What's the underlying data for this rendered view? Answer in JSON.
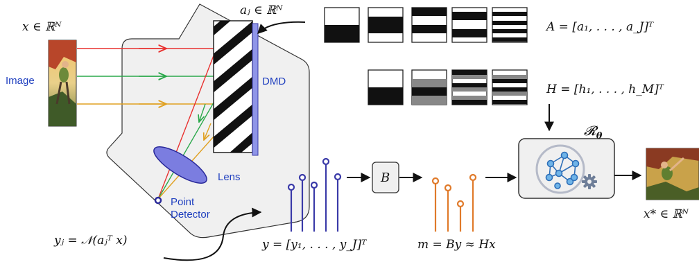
{
  "labels": {
    "image": "Image",
    "dmd": "DMD",
    "lens": "Lens",
    "point": "Point",
    "detector": "Detector"
  },
  "math": {
    "x_in": "x ∈ ℝᴺ",
    "a_j": "aⱼ ∈ ℝᴺ",
    "A": "A = [a₁, . . . , a_J]ᵀ",
    "H": "H = [h₁, . . . , h_M]ᵀ",
    "R": "𝓡",
    "R_sub": "θ",
    "y_j": "yⱼ = 𝒩(aⱼᵀ x)",
    "y": "y = [y₁, . . . , y_J]ᵀ",
    "B": "B",
    "m": "m = By ≈ Hx",
    "x_star": "x* ∈ ℝᴺ"
  },
  "colors": {
    "ray_red": "#e8312f",
    "ray_green": "#2aa84a",
    "ray_yellow": "#e0a020",
    "stem_blue": "#3a3aa8",
    "stem_orange": "#e07a2a",
    "text_blue": "#1f3fbf",
    "lens_fill": "#7b7de0",
    "dmd_bar": "#8f95e8"
  },
  "icons": {
    "network": "neural-network-icon",
    "gear": "gear-icon"
  }
}
